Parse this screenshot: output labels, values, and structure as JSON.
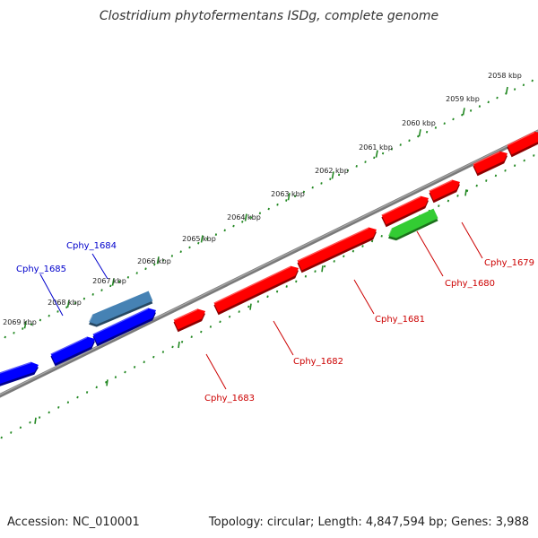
{
  "title": "Clostridium phytofermentans ISDg, complete genome",
  "footer": {
    "accession": "Accession: NC_010001",
    "summary": "Topology: circular; Length: 4,847,594 bp; Genes: 3,988"
  },
  "colors": {
    "forward": "#ff0000",
    "reverse": "#0000ff",
    "highlight_green": "#33cc33",
    "highlight_blue": "#4682b4",
    "backbone": "#808080",
    "ticks": "#228822",
    "label_red": "#cc0000",
    "label_blue": "#0000cc"
  },
  "kbp_labels": [
    "2058 kbp",
    "2059 kbp",
    "2060 kbp",
    "2061 kbp",
    "2062 kbp",
    "2063 kbp",
    "2064 kbp",
    "2065 kbp",
    "2066 kbp",
    "2067 kbp",
    "2068 kbp",
    "2069 kbp"
  ],
  "genes": [
    {
      "id": "g1679",
      "label": "Cphy_1679",
      "strand": "forward",
      "color_key": "forward"
    },
    {
      "id": "g1680",
      "label": "Cphy_1680",
      "strand": "forward",
      "color_key": "highlight_green"
    },
    {
      "id": "g1681",
      "label": "Cphy_1681",
      "strand": "forward",
      "color_key": "forward"
    },
    {
      "id": "g1682",
      "label": "Cphy_1682",
      "strand": "forward",
      "color_key": "forward"
    },
    {
      "id": "g1683",
      "label": "Cphy_1683",
      "strand": "forward",
      "color_key": "forward"
    },
    {
      "id": "g1684",
      "label": "Cphy_1684",
      "strand": "reverse",
      "color_key": "highlight_blue"
    },
    {
      "id": "g1685",
      "label": "Cphy_1685",
      "strand": "reverse",
      "color_key": "reverse"
    }
  ]
}
